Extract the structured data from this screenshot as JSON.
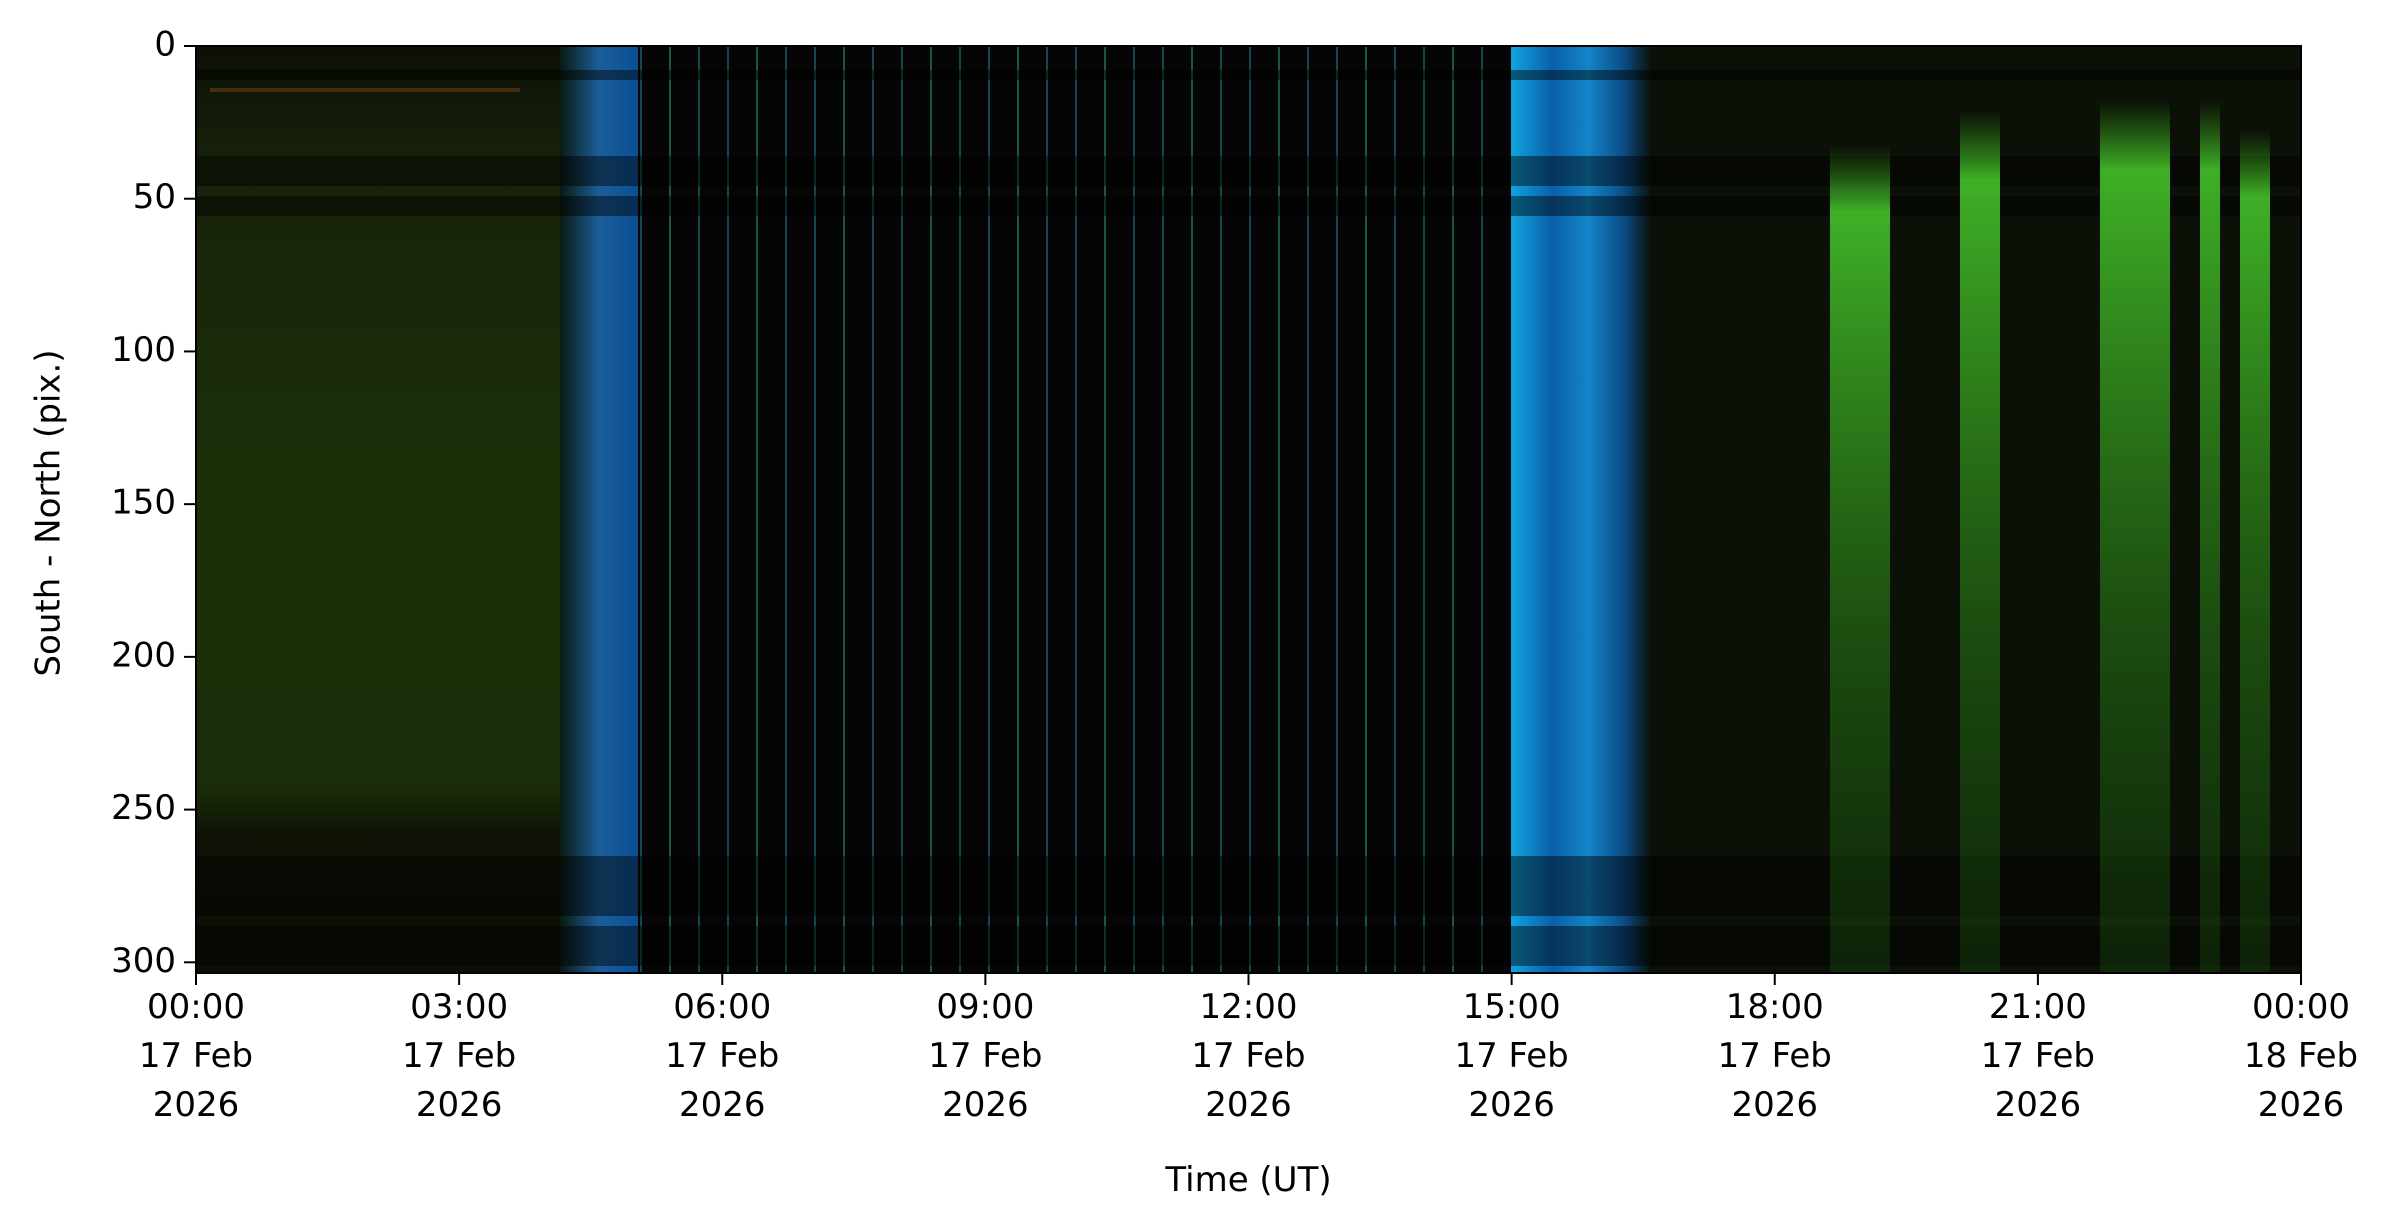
{
  "chart_data": {
    "type": "keogram",
    "x_label": "Time (UT)",
    "y_label": "South - North (pix.)",
    "xlim": [
      "2026-02-17T00:00",
      "2026-02-18T00:00"
    ],
    "xticks": [
      {
        "value": "2026-02-17T00:00",
        "label": "00:00\n17 Feb\n2026"
      },
      {
        "value": "2026-02-17T03:00",
        "label": "03:00\n17 Feb\n2026"
      },
      {
        "value": "2026-02-17T06:00",
        "label": "06:00\n17 Feb\n2026"
      },
      {
        "value": "2026-02-17T09:00",
        "label": "09:00\n17 Feb\n2026"
      },
      {
        "value": "2026-02-17T12:00",
        "label": "12:00\n17 Feb\n2026"
      },
      {
        "value": "2026-02-17T15:00",
        "label": "15:00\n17 Feb\n2026"
      },
      {
        "value": "2026-02-17T18:00",
        "label": "18:00\n17 Feb\n2026"
      },
      {
        "value": "2026-02-17T21:00",
        "label": "21:00\n17 Feb\n2026"
      },
      {
        "value": "2026-02-18T00:00",
        "label": "00:00\n18 Feb\n2026"
      }
    ],
    "ylim": [
      0,
      303.5
    ],
    "y_inverted": true,
    "yticks": [
      0,
      50,
      100,
      150,
      200,
      250,
      300
    ]
  }
}
